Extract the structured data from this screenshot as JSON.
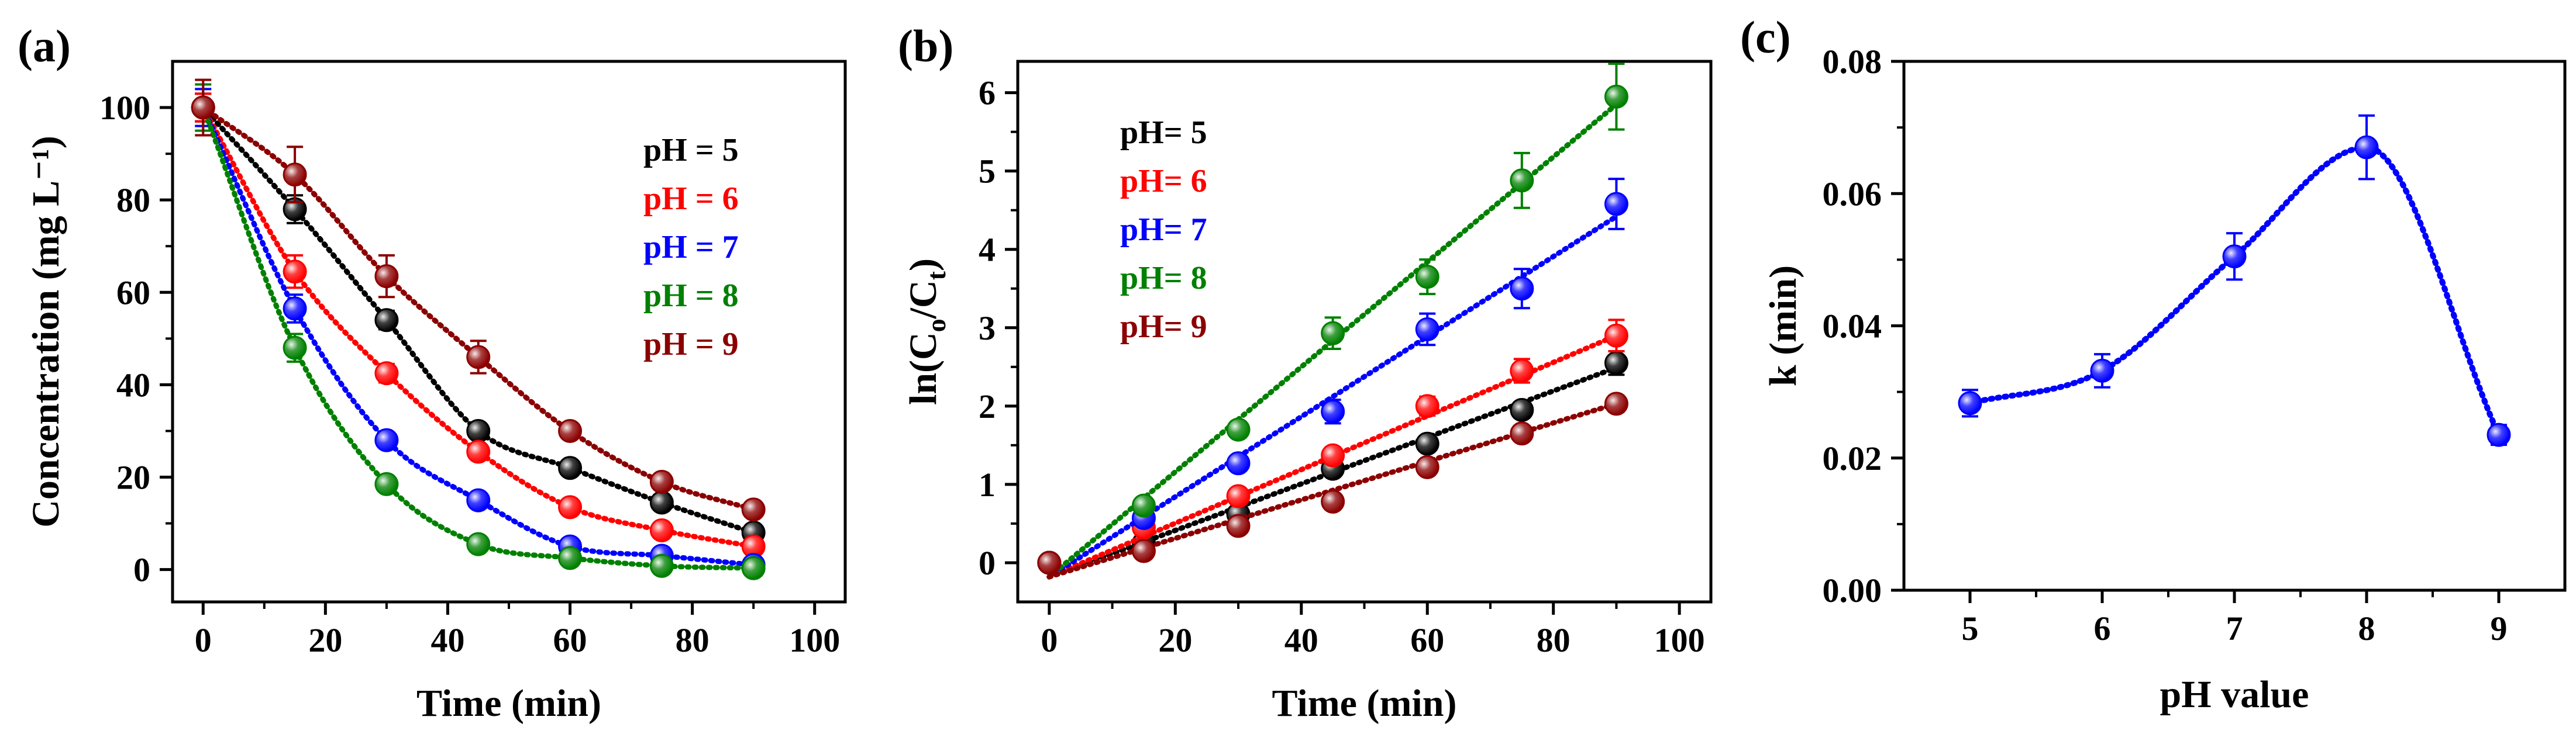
{
  "chart_data": [
    {
      "panel": "(a)",
      "type": "line",
      "xlabel": "Time (min)",
      "ylabel": "Concentration (mg L⁻¹)",
      "xlim": [
        -5,
        105
      ],
      "ylim": [
        -7,
        110
      ],
      "xticks": [
        0,
        20,
        40,
        60,
        80,
        100
      ],
      "yticks": [
        0,
        20,
        40,
        60,
        80,
        100
      ],
      "x": [
        0,
        15,
        30,
        45,
        60,
        75,
        90
      ],
      "legend_position": "top-right",
      "series": [
        {
          "name": "pH = 5",
          "color": "#000000",
          "values": [
            100,
            78,
            54,
            30,
            22,
            14.5,
            8
          ],
          "errors": [
            3,
            3,
            2,
            1.5,
            1.5,
            1.5,
            1.5
          ]
        },
        {
          "name": "pH = 6",
          "color": "#ff0000",
          "values": [
            100,
            64.5,
            42.5,
            25.5,
            13.5,
            8.5,
            5
          ],
          "errors": [
            3,
            3.5,
            2,
            1.5,
            1,
            1,
            1
          ]
        },
        {
          "name": "pH = 7",
          "color": "#0000ff",
          "values": [
            100,
            56.5,
            28,
            15,
            5,
            3,
            1
          ],
          "errors": [
            4,
            3,
            1.5,
            1.5,
            1,
            1,
            0.5
          ]
        },
        {
          "name": "pH = 8",
          "color": "#008000",
          "values": [
            100,
            48,
            18.5,
            5.5,
            2.5,
            0.8,
            0.3
          ],
          "errors": [
            5,
            3,
            1.5,
            1,
            0.5,
            0.5,
            0.3
          ]
        },
        {
          "name": "pH = 9",
          "color": "#8b0000",
          "values": [
            100,
            85.5,
            63.5,
            46,
            30,
            19,
            13
          ],
          "errors": [
            6,
            6,
            4.5,
            3.5,
            1.5,
            1.5,
            1.5
          ]
        }
      ]
    },
    {
      "panel": "(b)",
      "type": "scatter",
      "xlabel": "Time (min)",
      "ylabel": "ln(Co/Ct)",
      "xlim": [
        -5,
        105
      ],
      "ylim": [
        -0.5,
        6.4
      ],
      "xticks": [
        0,
        20,
        40,
        60,
        80,
        100
      ],
      "yticks": [
        0,
        1,
        2,
        3,
        4,
        5,
        6
      ],
      "x": [
        0,
        15,
        30,
        45,
        60,
        75,
        90
      ],
      "legend_position": "top-left",
      "series": [
        {
          "name": "pH= 5",
          "color": "#000000",
          "values": [
            0,
            0.25,
            0.62,
            1.2,
            1.52,
            1.95,
            2.55
          ],
          "errors": [
            0,
            0.04,
            0.05,
            0.05,
            0.06,
            0.1,
            0.15
          ],
          "fit": [
            -0.18,
            2.49
          ]
        },
        {
          "name": "pH= 6",
          "color": "#ff0000",
          "values": [
            0,
            0.45,
            0.85,
            1.37,
            2.0,
            2.45,
            2.9
          ],
          "errors": [
            0,
            0.05,
            0.06,
            0.1,
            0.12,
            0.15,
            0.2
          ],
          "fit": [
            -0.18,
            2.9
          ]
        },
        {
          "name": "pH= 7",
          "color": "#0000ff",
          "values": [
            0,
            0.57,
            1.27,
            1.93,
            2.98,
            3.5,
            4.58
          ],
          "errors": [
            0,
            0.06,
            0.08,
            0.15,
            0.2,
            0.25,
            0.32
          ],
          "fit": [
            -0.18,
            4.42
          ]
        },
        {
          "name": "pH= 8",
          "color": "#008000",
          "values": [
            0,
            0.73,
            1.7,
            2.93,
            3.65,
            4.88,
            5.95
          ],
          "errors": [
            0,
            0.08,
            0.1,
            0.2,
            0.22,
            0.35,
            0.42
          ],
          "fit": [
            -0.18,
            5.85
          ]
        },
        {
          "name": "pH= 9",
          "color": "#8b0000",
          "values": [
            0,
            0.15,
            0.47,
            0.78,
            1.22,
            1.65,
            2.03
          ],
          "errors": [
            0,
            0.03,
            0.04,
            0.05,
            0.06,
            0.08,
            0.1
          ],
          "fit": [
            -0.18,
            2.03
          ]
        }
      ]
    },
    {
      "panel": "(c)",
      "type": "line",
      "xlabel": "pH value",
      "ylabel": "k (min)",
      "xlim": [
        4.5,
        9.5
      ],
      "ylim": [
        0,
        0.08
      ],
      "xticks": [
        5,
        6,
        7,
        8,
        9
      ],
      "yticks": [
        "0.00",
        "0.02",
        "0.04",
        "0.06",
        "0.08"
      ],
      "x": [
        5,
        6,
        7,
        8,
        9
      ],
      "series": [
        {
          "name": "k",
          "color": "#0000ff",
          "values": [
            0.0283,
            0.0332,
            0.0505,
            0.067,
            0.0235
          ],
          "errors": [
            0.002,
            0.0025,
            0.0035,
            0.0048,
            0.0015
          ]
        }
      ]
    }
  ]
}
